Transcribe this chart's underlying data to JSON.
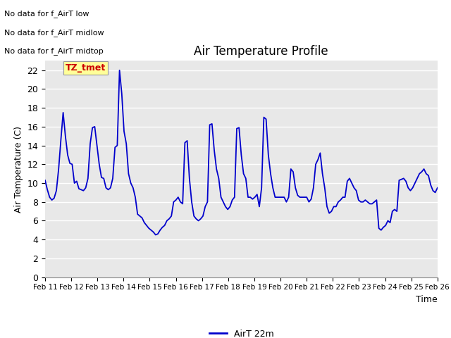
{
  "title": "Air Temperature Profile",
  "xlabel": "Time",
  "ylabel": "Air Temperature (C)",
  "line_color": "#0000cc",
  "line_width": 1.3,
  "background_color": "#ffffff",
  "plot_bg_color": "#e8e8e8",
  "grid_color": "#ffffff",
  "ylim": [
    0,
    23
  ],
  "yticks": [
    0,
    2,
    4,
    6,
    8,
    10,
    12,
    14,
    16,
    18,
    20,
    22
  ],
  "legend_label": "AirT 22m",
  "legend_line_color": "#0000cc",
  "annotations": [
    "No data for f_AirT low",
    "No data for f_AirT midlow",
    "No data for f_AirT midtop"
  ],
  "tooltip_text": "TZ_tmet",
  "tooltip_color": "#cc0000",
  "tooltip_bg": "#ffff99",
  "x_labels": [
    "Feb 11",
    "Feb 12",
    "Feb 13",
    "Feb 14",
    "Feb 15",
    "Feb 16",
    "Feb 17",
    "Feb 18",
    "Feb 19",
    "Feb 20",
    "Feb 21",
    "Feb 22",
    "Feb 23",
    "Feb 24",
    "Feb 25",
    "Feb 26"
  ],
  "y_values": [
    10.3,
    9.3,
    8.5,
    8.2,
    8.4,
    9.2,
    11.5,
    14.6,
    17.5,
    15.0,
    13.0,
    12.1,
    12.0,
    10.0,
    10.2,
    9.4,
    9.3,
    9.2,
    9.5,
    10.5,
    14.2,
    15.9,
    16.0,
    14.0,
    12.0,
    10.6,
    10.5,
    9.5,
    9.3,
    9.5,
    10.5,
    13.8,
    14.0,
    22.0,
    19.5,
    15.5,
    14.2,
    11.0,
    10.0,
    9.5,
    8.5,
    6.7,
    6.5,
    6.3,
    5.8,
    5.5,
    5.2,
    5.0,
    4.8,
    4.5,
    4.6,
    5.0,
    5.3,
    5.5,
    6.0,
    6.2,
    6.5,
    8.0,
    8.2,
    8.5,
    8.0,
    7.8,
    14.3,
    14.5,
    10.5,
    8.0,
    6.5,
    6.2,
    6.0,
    6.2,
    6.5,
    7.5,
    8.0,
    16.2,
    16.3,
    13.5,
    11.5,
    10.5,
    8.5,
    8.0,
    7.5,
    7.2,
    7.5,
    8.2,
    8.5,
    15.8,
    15.9,
    13.0,
    11.0,
    10.5,
    8.5,
    8.5,
    8.3,
    8.5,
    8.8,
    7.5,
    9.5,
    17.0,
    16.8,
    13.0,
    11.0,
    9.5,
    8.5,
    8.5,
    8.5,
    8.5,
    8.5,
    8.0,
    8.5,
    11.5,
    11.2,
    9.5,
    8.7,
    8.5,
    8.5,
    8.5,
    8.5,
    8.0,
    8.3,
    9.5,
    12.0,
    12.5,
    13.2,
    11.0,
    9.5,
    7.5,
    6.8,
    7.0,
    7.5,
    7.5,
    8.0,
    8.2,
    8.5,
    8.5,
    10.2,
    10.5,
    10.0,
    9.5,
    9.2,
    8.2,
    8.0,
    8.0,
    8.2,
    8.0,
    7.8,
    7.8,
    8.0,
    8.2,
    5.2,
    5.0,
    5.3,
    5.5,
    6.0,
    5.8,
    7.0,
    7.2,
    7.0,
    10.3,
    10.4,
    10.5,
    10.2,
    9.5,
    9.2,
    9.5,
    10.0,
    10.5,
    11.0,
    11.2,
    11.5,
    11.0,
    10.8,
    9.8,
    9.2,
    9.0,
    9.5
  ]
}
